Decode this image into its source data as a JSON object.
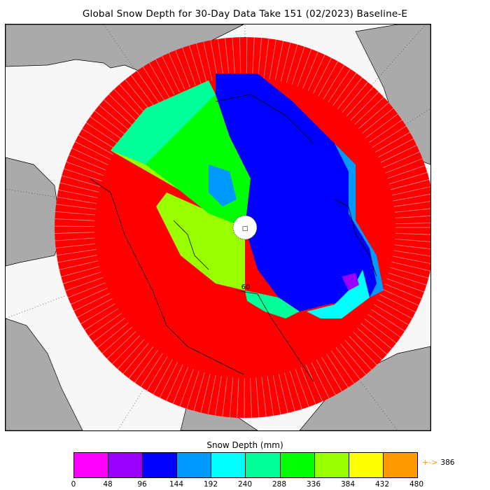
{
  "title": "Global Snow Depth for 30-Day Data Take 151 (02/2023) Baseline-E",
  "colorbar": {
    "title": "Snow Depth (mm)",
    "ticks": [
      "0",
      "48",
      "96",
      "144",
      "192",
      "240",
      "288",
      "336",
      "384",
      "432",
      "480"
    ],
    "colors": [
      "#ff00ff",
      "#9900ff",
      "#0000ff",
      "#0099ff",
      "#00ffff",
      "#00ff99",
      "#00ff00",
      "#99ff00",
      "#ffff00",
      "#ff9900"
    ],
    "overflow_arrow": "+->",
    "overflow_value": "386"
  },
  "map": {
    "projection": "north-polar-stereographic",
    "land_color": "#aaaaaa",
    "ocean_color": "#f7f7f7",
    "no_data_color": "#ff0000",
    "latitude_label": "60",
    "pole_marker": "□"
  }
}
